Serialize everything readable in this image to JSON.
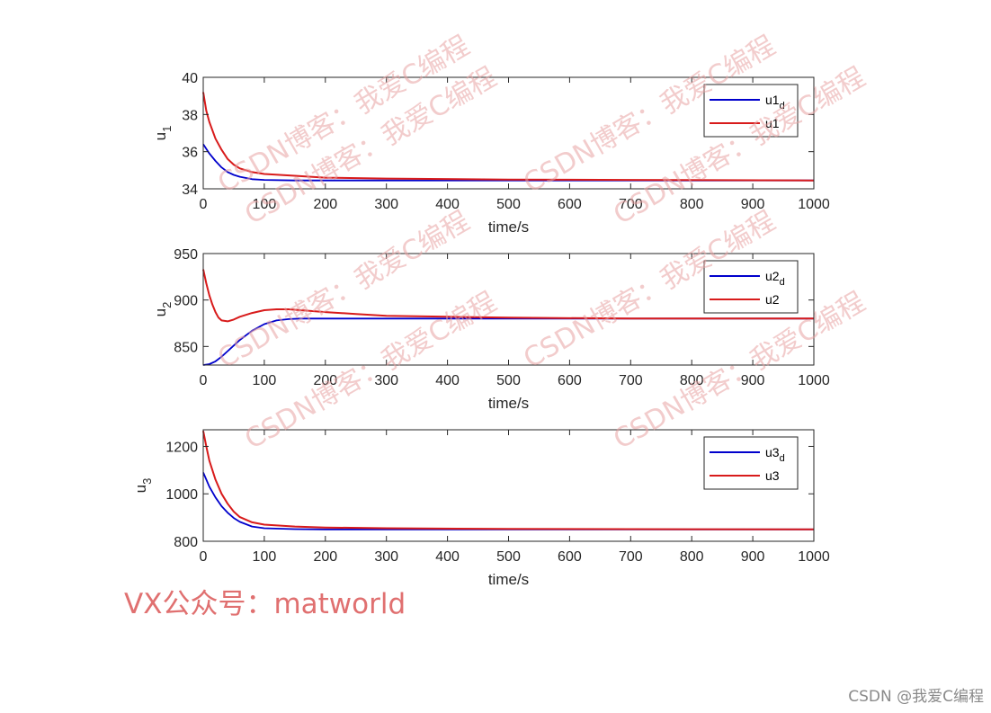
{
  "watermarks": {
    "blog": "CSDN博客：我爱C编程",
    "vx": "VX公众号：matworld",
    "credit": "CSDN @我爱C编程"
  },
  "colors": {
    "desired": "#0000cc",
    "actual": "#d81b1b",
    "axis": "#262626",
    "watermark": "#e07070"
  },
  "chart_data": [
    {
      "type": "line",
      "xlabel": "time/s",
      "ylabel_main": "u",
      "ylabel_sub": "1",
      "xlim": [
        0,
        1000
      ],
      "ylim": [
        34,
        40
      ],
      "xticks": [
        0,
        100,
        200,
        300,
        400,
        500,
        600,
        700,
        800,
        900,
        1000
      ],
      "yticks": [
        34,
        36,
        38,
        40
      ],
      "legend_position": "top-right",
      "series": [
        {
          "name_main": "u1",
          "name_sub": "d",
          "color": "#0000cc",
          "x": [
            0,
            10,
            20,
            30,
            40,
            50,
            60,
            80,
            100,
            150,
            200,
            300,
            500,
            700,
            1000
          ],
          "y": [
            36.4,
            35.9,
            35.5,
            35.15,
            34.9,
            34.75,
            34.65,
            34.52,
            34.48,
            34.45,
            34.45,
            34.45,
            34.45,
            34.45,
            34.45
          ]
        },
        {
          "name_main": "u1",
          "name_sub": "",
          "color": "#d81b1b",
          "x": [
            0,
            5,
            10,
            20,
            30,
            40,
            50,
            60,
            80,
            100,
            150,
            200,
            300,
            500,
            700,
            1000
          ],
          "y": [
            39.2,
            38.2,
            37.6,
            36.7,
            36.1,
            35.6,
            35.3,
            35.1,
            34.9,
            34.8,
            34.7,
            34.6,
            34.55,
            34.5,
            34.48,
            34.45
          ]
        }
      ]
    },
    {
      "type": "line",
      "xlabel": "time/s",
      "ylabel_main": "u",
      "ylabel_sub": "2",
      "xlim": [
        0,
        1000
      ],
      "ylim": [
        830,
        950
      ],
      "xticks": [
        0,
        100,
        200,
        300,
        400,
        500,
        600,
        700,
        800,
        900,
        1000
      ],
      "yticks": [
        850,
        900,
        950
      ],
      "legend_position": "top-right",
      "series": [
        {
          "name_main": "u2",
          "name_sub": "d",
          "color": "#0000cc",
          "x": [
            0,
            10,
            20,
            30,
            40,
            60,
            80,
            100,
            120,
            140,
            160,
            200,
            300,
            500,
            700,
            1000
          ],
          "y": [
            830,
            831,
            834,
            839,
            845,
            857,
            867,
            874,
            878,
            879.5,
            880,
            880,
            880,
            880,
            880,
            880
          ]
        },
        {
          "name_main": "u2",
          "name_sub": "",
          "color": "#d81b1b",
          "x": [
            0,
            5,
            10,
            15,
            20,
            25,
            30,
            40,
            50,
            60,
            80,
            100,
            120,
            140,
            160,
            200,
            250,
            300,
            400,
            500,
            700,
            1000
          ],
          "y": [
            933,
            918,
            905,
            895,
            887,
            881,
            878,
            877,
            879,
            882,
            886,
            889,
            890,
            890,
            889,
            887,
            885,
            883,
            882,
            881,
            880,
            880
          ]
        }
      ]
    },
    {
      "type": "line",
      "xlabel": "time/s",
      "ylabel_main": "u",
      "ylabel_sub": "3",
      "xlim": [
        0,
        1000
      ],
      "ylim": [
        800,
        1270
      ],
      "xticks": [
        0,
        100,
        200,
        300,
        400,
        500,
        600,
        700,
        800,
        900,
        1000
      ],
      "yticks": [
        800,
        1000,
        1200
      ],
      "legend_position": "top-right",
      "series": [
        {
          "name_main": "u3",
          "name_sub": "d",
          "color": "#0000cc",
          "x": [
            0,
            5,
            10,
            20,
            30,
            40,
            50,
            60,
            80,
            100,
            150,
            200,
            300,
            500,
            700,
            1000
          ],
          "y": [
            1090,
            1060,
            1030,
            985,
            948,
            920,
            898,
            882,
            862,
            855,
            851,
            850,
            850,
            850,
            850,
            850
          ]
        },
        {
          "name_main": "u3",
          "name_sub": "",
          "color": "#d81b1b",
          "x": [
            0,
            5,
            10,
            20,
            30,
            40,
            50,
            60,
            80,
            100,
            150,
            200,
            300,
            500,
            700,
            1000
          ],
          "y": [
            1265,
            1200,
            1140,
            1060,
            1000,
            958,
            925,
            902,
            880,
            870,
            862,
            858,
            855,
            852,
            851,
            850
          ]
        }
      ]
    }
  ]
}
